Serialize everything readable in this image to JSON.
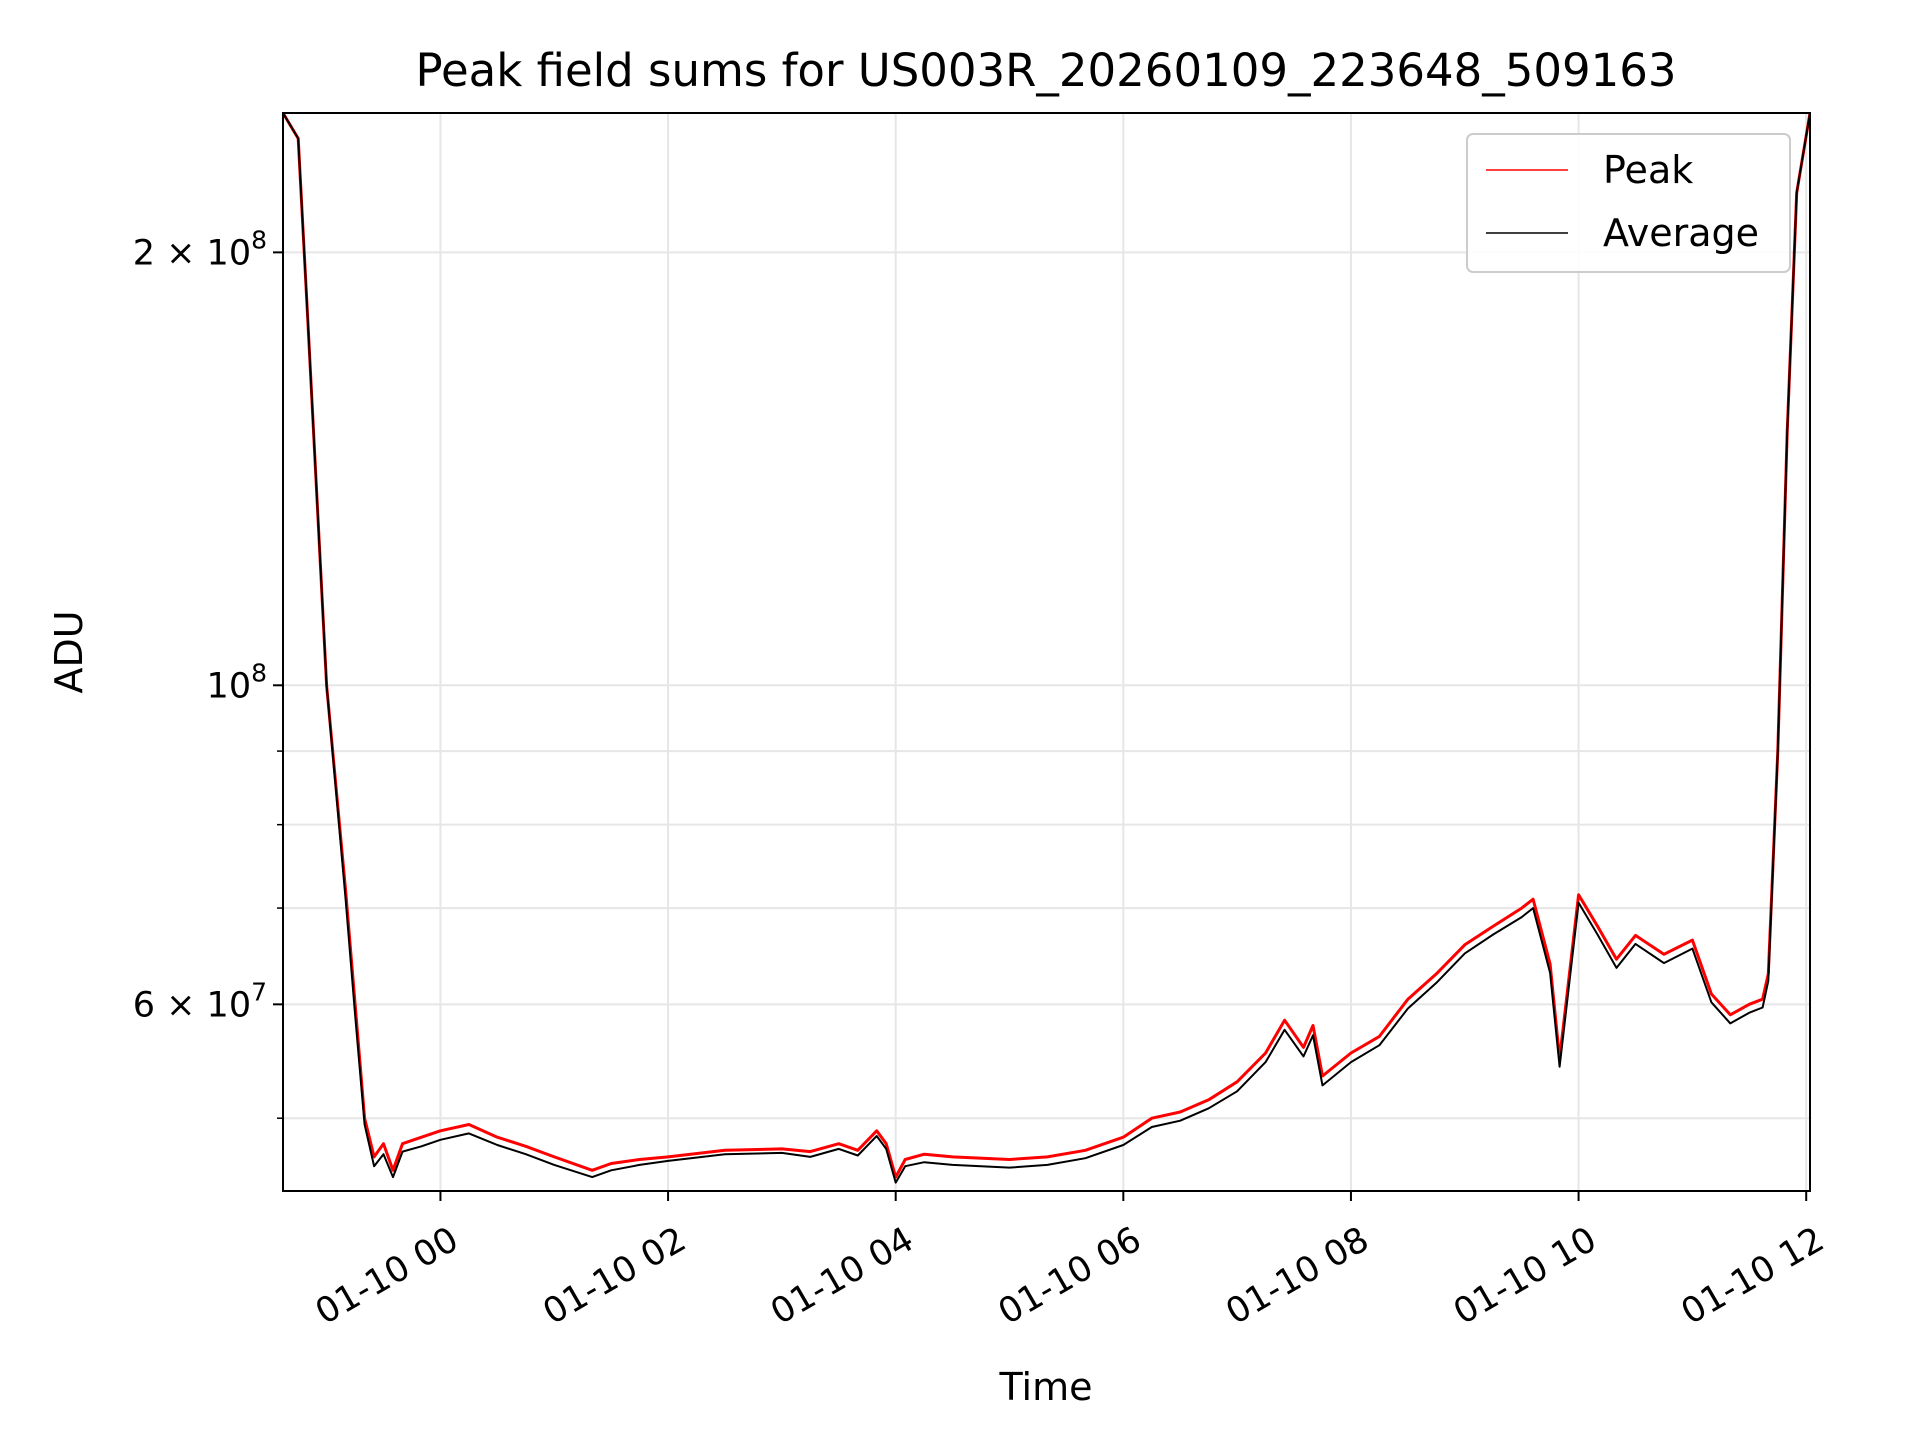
{
  "chart_data": {
    "type": "line",
    "title": "Peak field sums for US003R_20260109_223648_509163",
    "xlabel": "Time",
    "ylabel": "ADU",
    "y_scale": "log",
    "ylim": [
      44500000,
      250000000
    ],
    "xlim": [
      "2026-01-09 22:37",
      "2026-01-10 12:02"
    ],
    "grid": true,
    "legend": "top-right",
    "x_ticks": [
      "2026-01-10 00:00",
      "2026-01-10 02:00",
      "2026-01-10 04:00",
      "2026-01-10 06:00",
      "2026-01-10 08:00",
      "2026-01-10 10:00",
      "2026-01-10 12:00"
    ],
    "x_tick_labels": [
      "01-10 00",
      "01-10 02",
      "01-10 04",
      "01-10 06",
      "01-10 08",
      "01-10 10",
      "01-10 12"
    ],
    "y_ticks": [
      {
        "value": 200000000,
        "mant": "2",
        "exp": "8"
      },
      {
        "value": 100000000,
        "mant": "",
        "exp": "8"
      },
      {
        "value": 60000000,
        "mant": "6",
        "exp": "7"
      }
    ],
    "y_minor_ticks": [
      50000000,
      70000000,
      80000000,
      90000000
    ],
    "x": [
      "2026-01-09 22:37",
      "2026-01-09 22:45",
      "2026-01-09 22:50",
      "2026-01-09 23:00",
      "2026-01-09 23:10",
      "2026-01-09 23:15",
      "2026-01-09 23:20",
      "2026-01-09 23:25",
      "2026-01-09 23:30",
      "2026-01-09 23:35",
      "2026-01-09 23:40",
      "2026-01-09 23:50",
      "2026-01-10 00:00",
      "2026-01-10 00:15",
      "2026-01-10 00:30",
      "2026-01-10 00:45",
      "2026-01-10 01:00",
      "2026-01-10 01:20",
      "2026-01-10 01:30",
      "2026-01-10 01:45",
      "2026-01-10 02:00",
      "2026-01-10 02:30",
      "2026-01-10 03:00",
      "2026-01-10 03:15",
      "2026-01-10 03:30",
      "2026-01-10 03:40",
      "2026-01-10 03:50",
      "2026-01-10 03:55",
      "2026-01-10 04:00",
      "2026-01-10 04:05",
      "2026-01-10 04:15",
      "2026-01-10 04:30",
      "2026-01-10 05:00",
      "2026-01-10 05:20",
      "2026-01-10 05:40",
      "2026-01-10 06:00",
      "2026-01-10 06:15",
      "2026-01-10 06:30",
      "2026-01-10 06:45",
      "2026-01-10 07:00",
      "2026-01-10 07:15",
      "2026-01-10 07:25",
      "2026-01-10 07:35",
      "2026-01-10 07:40",
      "2026-01-10 07:45",
      "2026-01-10 08:00",
      "2026-01-10 08:15",
      "2026-01-10 08:30",
      "2026-01-10 08:45",
      "2026-01-10 09:00",
      "2026-01-10 09:15",
      "2026-01-10 09:30",
      "2026-01-10 09:36",
      "2026-01-10 09:45",
      "2026-01-10 09:50",
      "2026-01-10 10:00",
      "2026-01-10 10:10",
      "2026-01-10 10:20",
      "2026-01-10 10:30",
      "2026-01-10 10:45",
      "2026-01-10 11:00",
      "2026-01-10 11:10",
      "2026-01-10 11:20",
      "2026-01-10 11:30",
      "2026-01-10 11:37",
      "2026-01-10 11:40",
      "2026-01-10 11:45",
      "2026-01-10 11:50",
      "2026-01-10 11:55",
      "2026-01-10 12:02"
    ],
    "series": [
      {
        "name": "Peak",
        "color": "#ff0000",
        "values": [
          250000000,
          240000000,
          180000000,
          100000000,
          72000000,
          60000000,
          50000000,
          47000000,
          48000000,
          46000000,
          48000000,
          48500000,
          49000000,
          49500000,
          48500000,
          47800000,
          47000000,
          46000000,
          46500000,
          46800000,
          47000000,
          47500000,
          47600000,
          47400000,
          48000000,
          47500000,
          49000000,
          48000000,
          45500000,
          46800000,
          47200000,
          47000000,
          46800000,
          47000000,
          47500000,
          48500000,
          50000000,
          50500000,
          51500000,
          53000000,
          55500000,
          58500000,
          56000000,
          58000000,
          53500000,
          55500000,
          57000000,
          60500000,
          63000000,
          66000000,
          68000000,
          70000000,
          71000000,
          64000000,
          55000000,
          71500000,
          68000000,
          64500000,
          67000000,
          65000000,
          66500000,
          61000000,
          59000000,
          60000000,
          60500000,
          63000000,
          90000000,
          150000000,
          220000000,
          250000000
        ]
      },
      {
        "name": "Average",
        "color": "#000000",
        "values": [
          250000000,
          240000000,
          180000000,
          100000000,
          71000000,
          59000000,
          49500000,
          46300000,
          47200000,
          45500000,
          47400000,
          47800000,
          48300000,
          48800000,
          47900000,
          47200000,
          46400000,
          45500000,
          46000000,
          46400000,
          46700000,
          47200000,
          47300000,
          47000000,
          47600000,
          47100000,
          48600000,
          47600000,
          45100000,
          46300000,
          46600000,
          46400000,
          46200000,
          46400000,
          46900000,
          47900000,
          49300000,
          49800000,
          50800000,
          52200000,
          54700000,
          57600000,
          55200000,
          57100000,
          52700000,
          54700000,
          56200000,
          59600000,
          62100000,
          65100000,
          67100000,
          69000000,
          70000000,
          63100000,
          54300000,
          70600000,
          67100000,
          63600000,
          66100000,
          64100000,
          65600000,
          60200000,
          58200000,
          59200000,
          59700000,
          62300000,
          90000000,
          150000000,
          220000000,
          250000000
        ]
      }
    ]
  }
}
